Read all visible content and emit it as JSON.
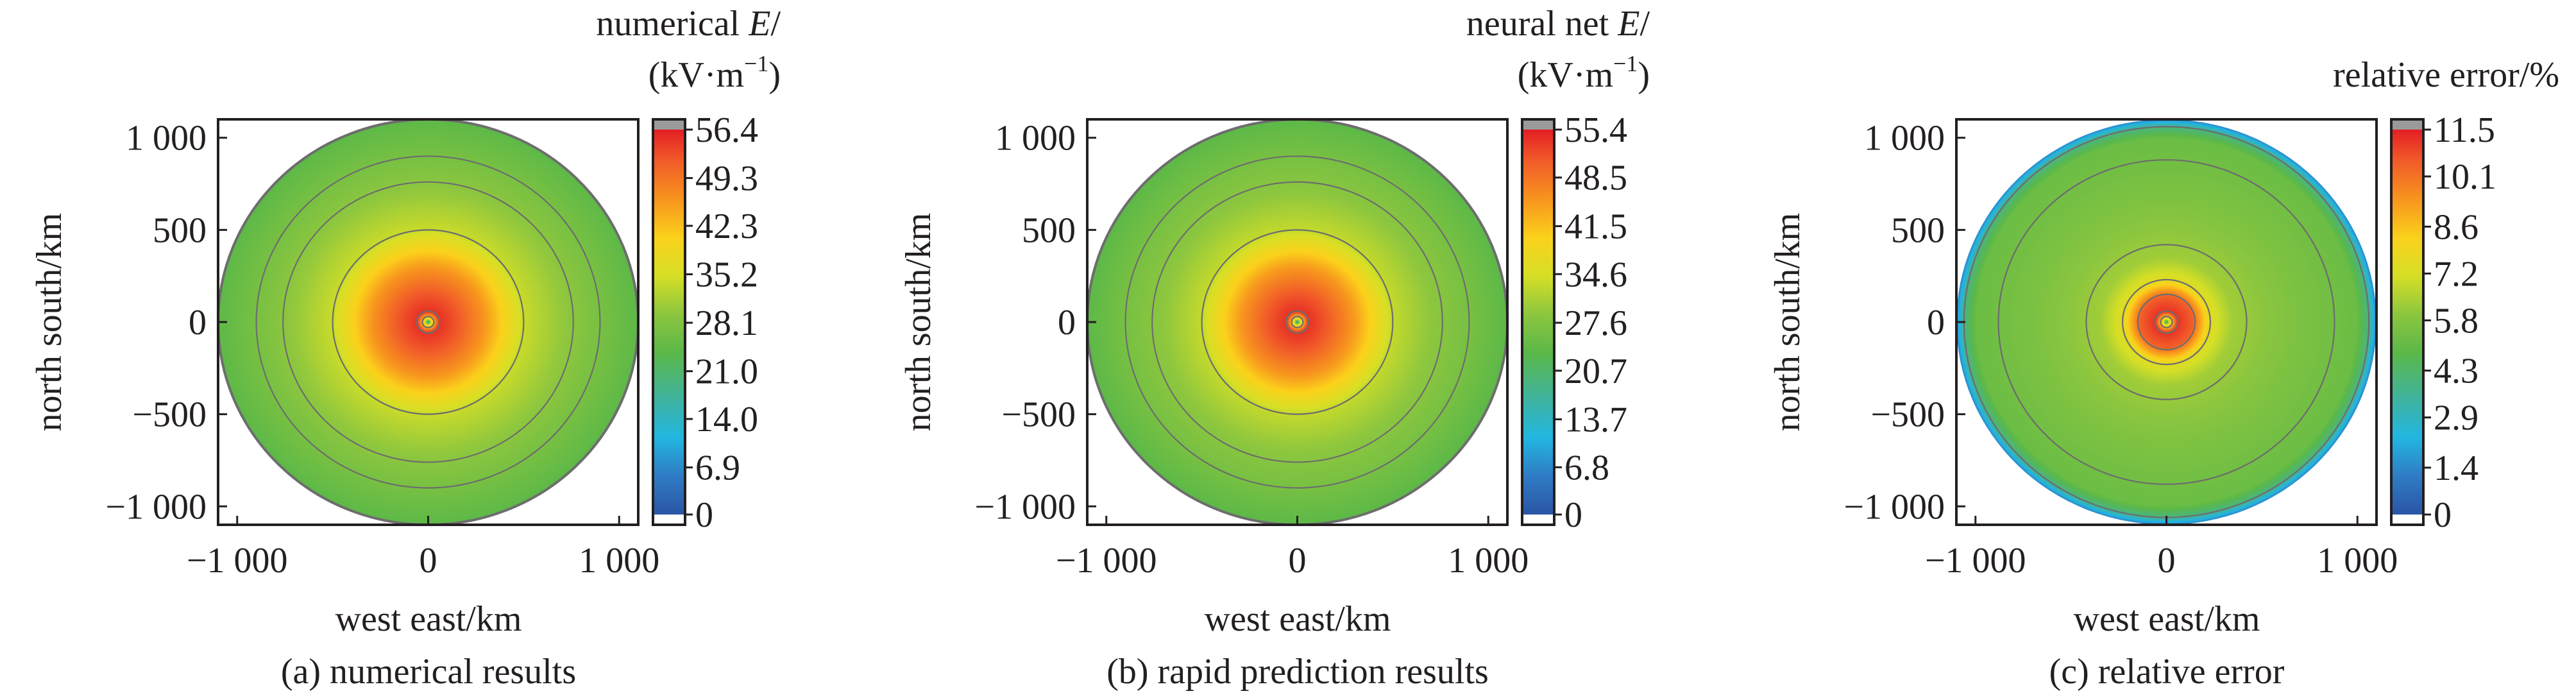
{
  "chart_data": [
    {
      "type": "heatmap",
      "panel": "a",
      "caption": "(a) numerical results",
      "xlabel": "west east/km",
      "ylabel": "north south/km",
      "xticks": [
        "−1 000",
        "0",
        "1 000"
      ],
      "yticks": [
        "1 000",
        "500",
        "0",
        "−500",
        "−1 000"
      ],
      "xlim": [
        -1100,
        1100
      ],
      "ylim": [
        -1100,
        1100
      ],
      "tick_values": [
        -1000,
        0,
        1000
      ],
      "ytick_values": [
        1000,
        500,
        0,
        -500,
        -1000
      ],
      "colorbar": {
        "title_prefix": "numerical ",
        "title_var": "E",
        "title_suffix": "/",
        "unit_open": "(kV·m",
        "unit_sup": "−1",
        "unit_close": ")",
        "title": "",
        "min": 0,
        "max": 56.4,
        "ticks": [
          "56.4",
          "49.3",
          "42.3",
          "35.2",
          "28.1",
          "21.0",
          "14.0",
          "6.9",
          "0"
        ],
        "tick_values": [
          56.4,
          49.3,
          42.3,
          35.2,
          28.1,
          21.0,
          14.0,
          6.9,
          0
        ]
      },
      "field": {
        "kind": "radial",
        "domain_radius_km": 1100,
        "center_value": 22,
        "profile": [
          [
            0,
            22
          ],
          [
            25,
            40
          ],
          [
            60,
            55
          ],
          [
            160,
            52
          ],
          [
            300,
            46
          ],
          [
            400,
            40
          ],
          [
            500,
            34
          ],
          [
            700,
            30
          ],
          [
            900,
            27
          ],
          [
            1100,
            24
          ]
        ],
        "contour_radii_km": [
          30,
          60,
          500,
          760,
          900,
          1100
        ]
      }
    },
    {
      "type": "heatmap",
      "panel": "b",
      "caption": "(b) rapid prediction results",
      "xlabel": "west east/km",
      "ylabel": "north south/km",
      "xticks": [
        "−1 000",
        "0",
        "1 000"
      ],
      "yticks": [
        "1 000",
        "500",
        "0",
        "−500",
        "−1 000"
      ],
      "xlim": [
        -1100,
        1100
      ],
      "ylim": [
        -1100,
        1100
      ],
      "tick_values": [
        -1000,
        0,
        1000
      ],
      "ytick_values": [
        1000,
        500,
        0,
        -500,
        -1000
      ],
      "colorbar": {
        "title_prefix": "neural net ",
        "title_var": "E",
        "title_suffix": "/",
        "unit_open": "(kV·m",
        "unit_sup": "−1",
        "unit_close": ")",
        "title": "",
        "min": 0,
        "max": 55.4,
        "ticks": [
          "55.4",
          "48.5",
          "41.5",
          "34.6",
          "27.6",
          "20.7",
          "13.7",
          "6.8",
          "0"
        ],
        "tick_values": [
          55.4,
          48.5,
          41.5,
          34.6,
          27.6,
          20.7,
          13.7,
          6.8,
          0
        ]
      },
      "field": {
        "kind": "radial",
        "domain_radius_km": 1100,
        "center_value": 21,
        "profile": [
          [
            0,
            21
          ],
          [
            25,
            39
          ],
          [
            60,
            54
          ],
          [
            160,
            51
          ],
          [
            300,
            45
          ],
          [
            400,
            39
          ],
          [
            500,
            33
          ],
          [
            700,
            29
          ],
          [
            900,
            26.5
          ],
          [
            1100,
            23.5
          ]
        ],
        "contour_radii_km": [
          30,
          60,
          500,
          760,
          900,
          1100
        ]
      }
    },
    {
      "type": "heatmap",
      "panel": "c",
      "caption": "(c) relative error",
      "xlabel": "west east/km",
      "ylabel": "north south/km",
      "xticks": [
        "−1 000",
        "0",
        "1 000"
      ],
      "yticks": [
        "1 000",
        "500",
        "0",
        "−500",
        "−1 000"
      ],
      "xlim": [
        -1100,
        1100
      ],
      "ylim": [
        -1100,
        1100
      ],
      "tick_values": [
        -1000,
        0,
        1000
      ],
      "ytick_values": [
        1000,
        500,
        0,
        -500,
        -1000
      ],
      "colorbar": {
        "title_prefix": "",
        "title_var": "",
        "title_suffix": "",
        "unit_open": "",
        "unit_sup": "",
        "unit_close": "",
        "title": "relative error/%",
        "min": 0,
        "max": 11.5,
        "ticks": [
          "11.5",
          "10.1",
          "8.6",
          "7.2",
          "5.8",
          "4.3",
          "2.9",
          "1.4",
          "0"
        ],
        "tick_values": [
          11.5,
          10.1,
          8.6,
          7.2,
          5.8,
          4.3,
          2.9,
          1.4,
          0
        ]
      },
      "field": {
        "kind": "radial",
        "domain_radius_km": 1100,
        "center_value": 5,
        "profile": [
          [
            0,
            5
          ],
          [
            25,
            8
          ],
          [
            60,
            11.2
          ],
          [
            140,
            10.5
          ],
          [
            230,
            7.5
          ],
          [
            350,
            6.3
          ],
          [
            700,
            5.6
          ],
          [
            1000,
            5.2
          ],
          [
            1060,
            4
          ],
          [
            1100,
            1.5
          ]
        ],
        "contour_radii_km": [
          30,
          60,
          150,
          230,
          420,
          880,
          1060
        ]
      }
    }
  ]
}
